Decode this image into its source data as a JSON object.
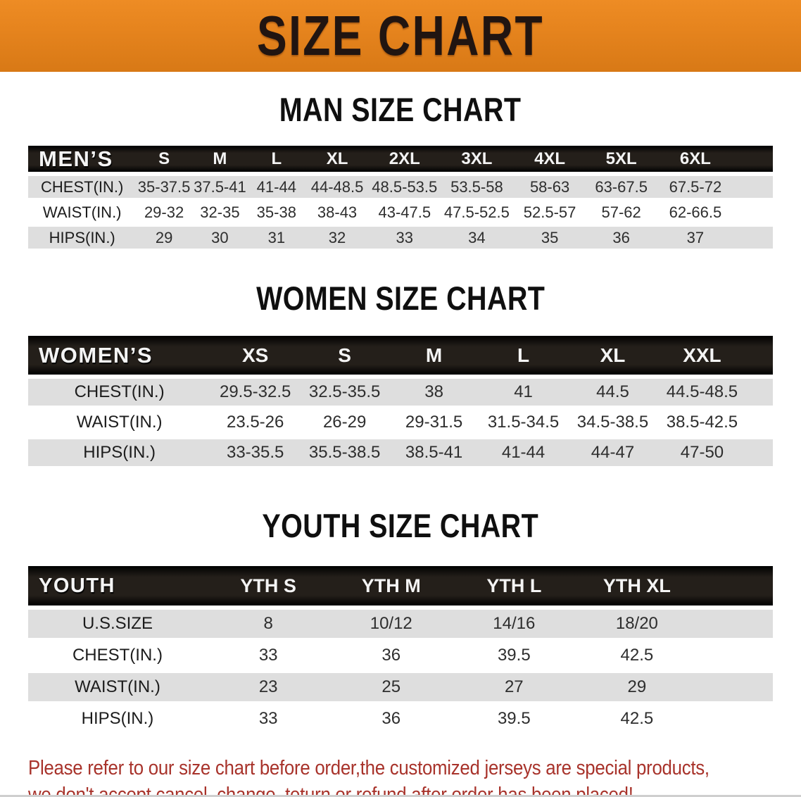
{
  "banner": {
    "title": "SIZE CHART"
  },
  "colors": {
    "banner_orange": "#E5831D",
    "header_black": "#171310",
    "stripe_gray": "#DEDEDE",
    "note_red": "#A8332B",
    "heading_black": "#0F0F0F"
  },
  "sections": [
    {
      "heading": "MAN SIZE CHART",
      "table": {
        "header_label": "MEN’S",
        "columns": [
          "S",
          "M",
          "L",
          "XL",
          "2XL",
          "3XL",
          "4XL",
          "5XL",
          "6XL"
        ],
        "rows": [
          {
            "label": "CHEST(IN.)",
            "values": [
              "35-37.5",
              "37.5-41",
              "41-44",
              "44-48.5",
              "48.5-53.5",
              "53.5-58",
              "58-63",
              "63-67.5",
              "67.5-72"
            ]
          },
          {
            "label": "WAIST(IN.)",
            "values": [
              "29-32",
              "32-35",
              "35-38",
              "38-43",
              "43-47.5",
              "47.5-52.5",
              "52.5-57",
              "57-62",
              "62-66.5"
            ]
          },
          {
            "label": "HIPS(IN.)",
            "values": [
              "29",
              "30",
              "31",
              "32",
              "33",
              "34",
              "35",
              "36",
              "37"
            ]
          }
        ]
      }
    },
    {
      "heading": "WOMEN SIZE CHART",
      "table": {
        "header_label": "WOMEN’S",
        "columns": [
          "XS",
          "S",
          "M",
          "L",
          "XL",
          "XXL"
        ],
        "rows": [
          {
            "label": "CHEST(IN.)",
            "values": [
              "29.5-32.5",
              "32.5-35.5",
              "38",
              "41",
              "44.5",
              "44.5-48.5"
            ]
          },
          {
            "label": "WAIST(IN.)",
            "values": [
              "23.5-26",
              "26-29",
              "29-31.5",
              "31.5-34.5",
              "34.5-38.5",
              "38.5-42.5"
            ]
          },
          {
            "label": "HIPS(IN.)",
            "values": [
              "33-35.5",
              "35.5-38.5",
              "38.5-41",
              "41-44",
              "44-47",
              "47-50"
            ]
          }
        ]
      }
    },
    {
      "heading": "YOUTH SIZE CHART",
      "table": {
        "header_label": "YOUTH",
        "columns": [
          "YTH S",
          "YTH M",
          "YTH L",
          "YTH XL"
        ],
        "rows": [
          {
            "label": "U.S.SIZE",
            "values": [
              "8",
              "10/12",
              "14/16",
              "18/20"
            ]
          },
          {
            "label": "CHEST(IN.)",
            "values": [
              "33",
              "36",
              "39.5",
              "42.5"
            ]
          },
          {
            "label": "WAIST(IN.)",
            "values": [
              "23",
              "25",
              "27",
              "29"
            ]
          },
          {
            "label": "HIPS(IN.)",
            "values": [
              "33",
              "36",
              "39.5",
              "42.5"
            ]
          }
        ]
      }
    }
  ],
  "footer_note": {
    "line1": "Please refer to our size chart before order,the customized jerseys are special products,",
    "line2": "we don't accept cancel, change, teturn or refund after order has been placed!"
  }
}
